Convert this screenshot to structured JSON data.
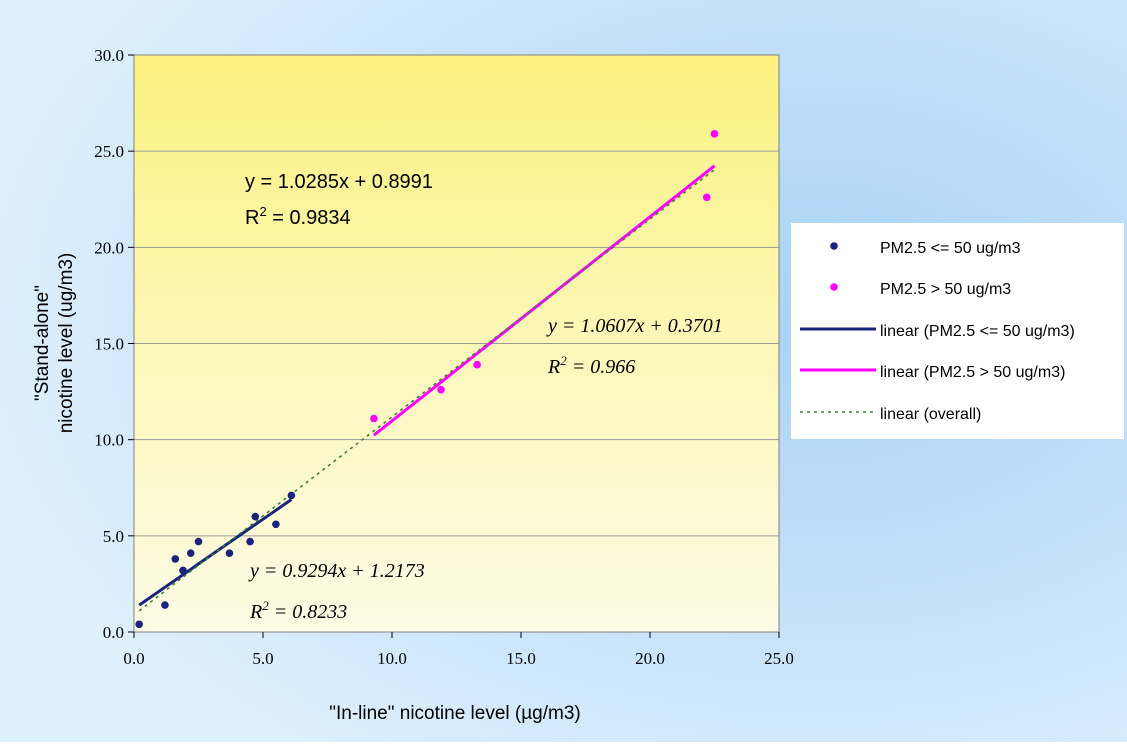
{
  "chart_data": {
    "type": "scatter",
    "title": "",
    "xlabel": "\"In-line\" nicotine level (µg/m3)",
    "ylabel": [
      "\"Stand-alone\"",
      "nicotine level (ug/m3)"
    ],
    "xlim": [
      0,
      25
    ],
    "ylim": [
      0,
      30
    ],
    "x_ticks": [
      0,
      5,
      10,
      15,
      20,
      25
    ],
    "y_ticks": [
      0,
      5,
      10,
      15,
      20,
      25,
      30
    ],
    "x_tick_labels": [
      "0.0",
      "5.0",
      "10.0",
      "15.0",
      "20.0",
      "25.0"
    ],
    "y_tick_labels": [
      "0.0",
      "5.0",
      "10.0",
      "15.0",
      "20.0",
      "25.0",
      "30.0"
    ],
    "grid": "horizontal",
    "legend_position": "right",
    "series": [
      {
        "name": "PM2.5 <= 50 ug/m3",
        "kind": "points",
        "color": "#1a237e",
        "points": [
          [
            0.2,
            0.4
          ],
          [
            1.2,
            1.4
          ],
          [
            1.6,
            3.8
          ],
          [
            1.9,
            3.2
          ],
          [
            2.2,
            4.1
          ],
          [
            2.5,
            4.7
          ],
          [
            3.7,
            4.1
          ],
          [
            4.5,
            4.7
          ],
          [
            4.7,
            6.0
          ],
          [
            5.5,
            5.6
          ],
          [
            6.1,
            7.1
          ]
        ]
      },
      {
        "name": "PM2.5 > 50 ug/m3",
        "kind": "points",
        "color": "#ff00ff",
        "points": [
          [
            9.3,
            11.1
          ],
          [
            11.9,
            12.6
          ],
          [
            13.3,
            13.9
          ],
          [
            22.2,
            22.6
          ],
          [
            22.5,
            25.9
          ]
        ]
      },
      {
        "name": "linear (PM2.5 <= 50 ug/m3)",
        "kind": "trend",
        "color": "#1a237e",
        "style": "solid",
        "points": [
          [
            0.2,
            1.4
          ],
          [
            1.2,
            2.33
          ],
          [
            1.6,
            2.7
          ],
          [
            1.9,
            2.98
          ],
          [
            2.2,
            3.26
          ],
          [
            2.5,
            3.54
          ],
          [
            3.7,
            4.66
          ],
          [
            4.5,
            5.4
          ],
          [
            4.7,
            5.59
          ],
          [
            5.5,
            6.33
          ],
          [
            6.1,
            6.89
          ]
        ]
      },
      {
        "name": "linear (PM2.5 > 50 ug/m3)",
        "kind": "trend",
        "color": "#ff00ff",
        "style": "solid",
        "points": [
          [
            9.3,
            10.23
          ],
          [
            11.9,
            12.99
          ],
          [
            13.3,
            14.48
          ],
          [
            22.2,
            23.92
          ],
          [
            22.5,
            24.24
          ]
        ]
      },
      {
        "name": "linear (overall)",
        "kind": "trend",
        "color": "#2e8b2e",
        "style": "dotted",
        "points": [
          [
            0.2,
            1.1
          ],
          [
            22.5,
            24.04
          ]
        ]
      }
    ],
    "annotations": [
      {
        "lines": [
          "y = 1.0285x + 0.8991",
          "R2 = 0.9834"
        ],
        "style": "plain"
      },
      {
        "lines": [
          "y = 1.0607x + 0.3701",
          "R2 = 0.966"
        ],
        "style": "italic"
      },
      {
        "lines": [
          "y = 0.9294x + 1.2173",
          "R2 = 0.8233"
        ],
        "style": "italic"
      }
    ]
  }
}
